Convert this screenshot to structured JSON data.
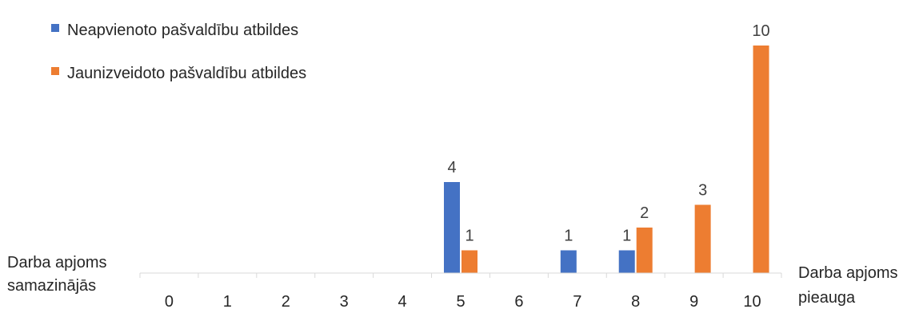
{
  "chart_data": {
    "type": "bar",
    "categories": [
      "0",
      "1",
      "2",
      "3",
      "4",
      "5",
      "6",
      "7",
      "8",
      "9",
      "10"
    ],
    "series": [
      {
        "name": "Neapvienoto pašvaldību atbildes",
        "color": "#4472C4",
        "values": [
          0,
          0,
          0,
          0,
          0,
          4,
          0,
          1,
          1,
          0,
          0
        ],
        "labels": [
          "",
          "",
          "",
          "",
          "",
          "4",
          "",
          "1",
          "1",
          "",
          ""
        ]
      },
      {
        "name": "Jaunizveidoto pašvaldību atbildes",
        "color": "#ED7D31",
        "values": [
          0,
          0,
          0,
          0,
          0,
          1,
          0,
          0,
          2,
          3,
          10
        ],
        "labels": [
          "",
          "",
          "",
          "",
          "",
          "1",
          "",
          "",
          "2",
          "3",
          "10"
        ]
      }
    ],
    "ylim": [
      0,
      10
    ],
    "grid": false,
    "legend_position": "top-left",
    "left_axis_note": [
      "Darba apjoms",
      "samazinājās"
    ],
    "right_axis_note": [
      "Darba apjoms",
      "pieauga"
    ]
  }
}
